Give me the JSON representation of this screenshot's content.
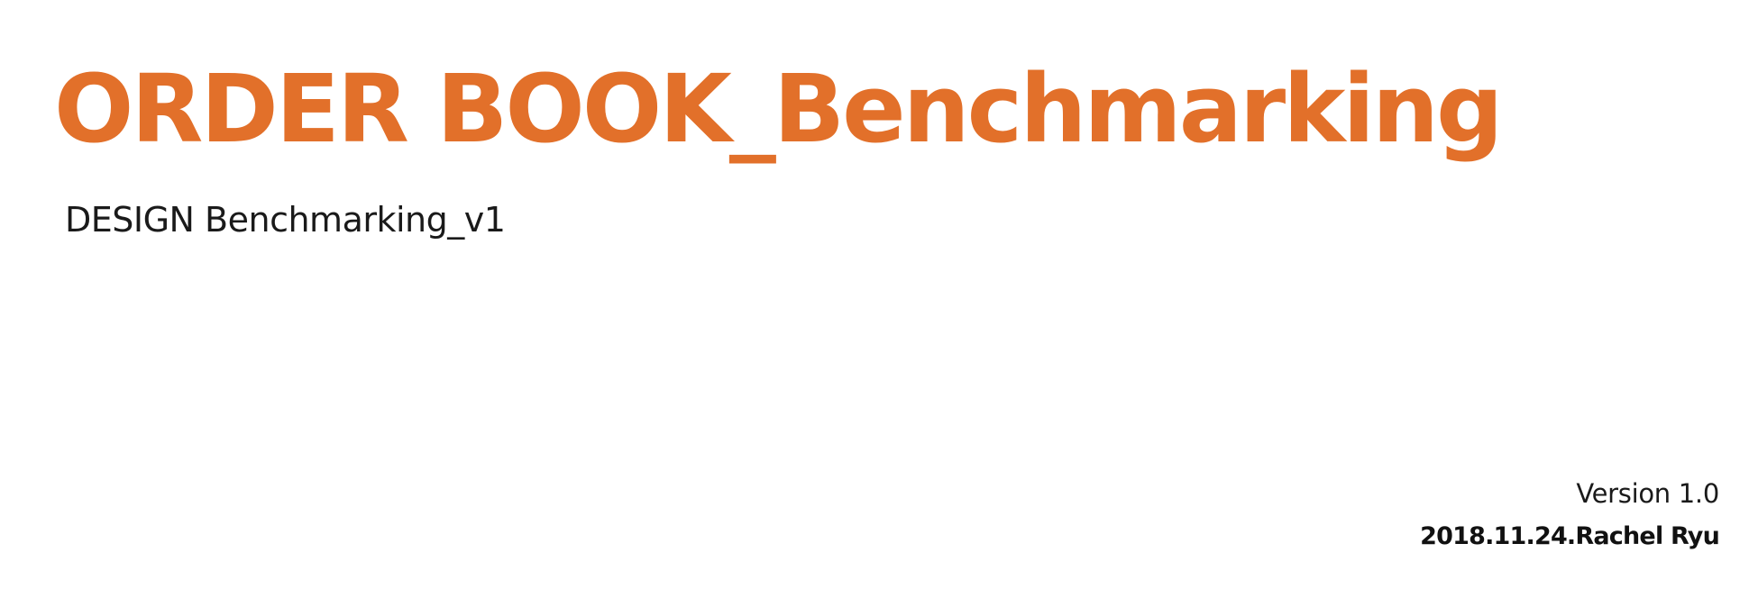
{
  "cover": {
    "title": "ORDER BOOK_Benchmarking",
    "subtitle": "DESIGN Benchmarking_v1",
    "version": "Version 1.0",
    "date_author": "2018.11.24.Rachel Ryu"
  },
  "colors": {
    "title": "#E2702A",
    "text": "#1a1a1a",
    "background": "#ffffff"
  }
}
